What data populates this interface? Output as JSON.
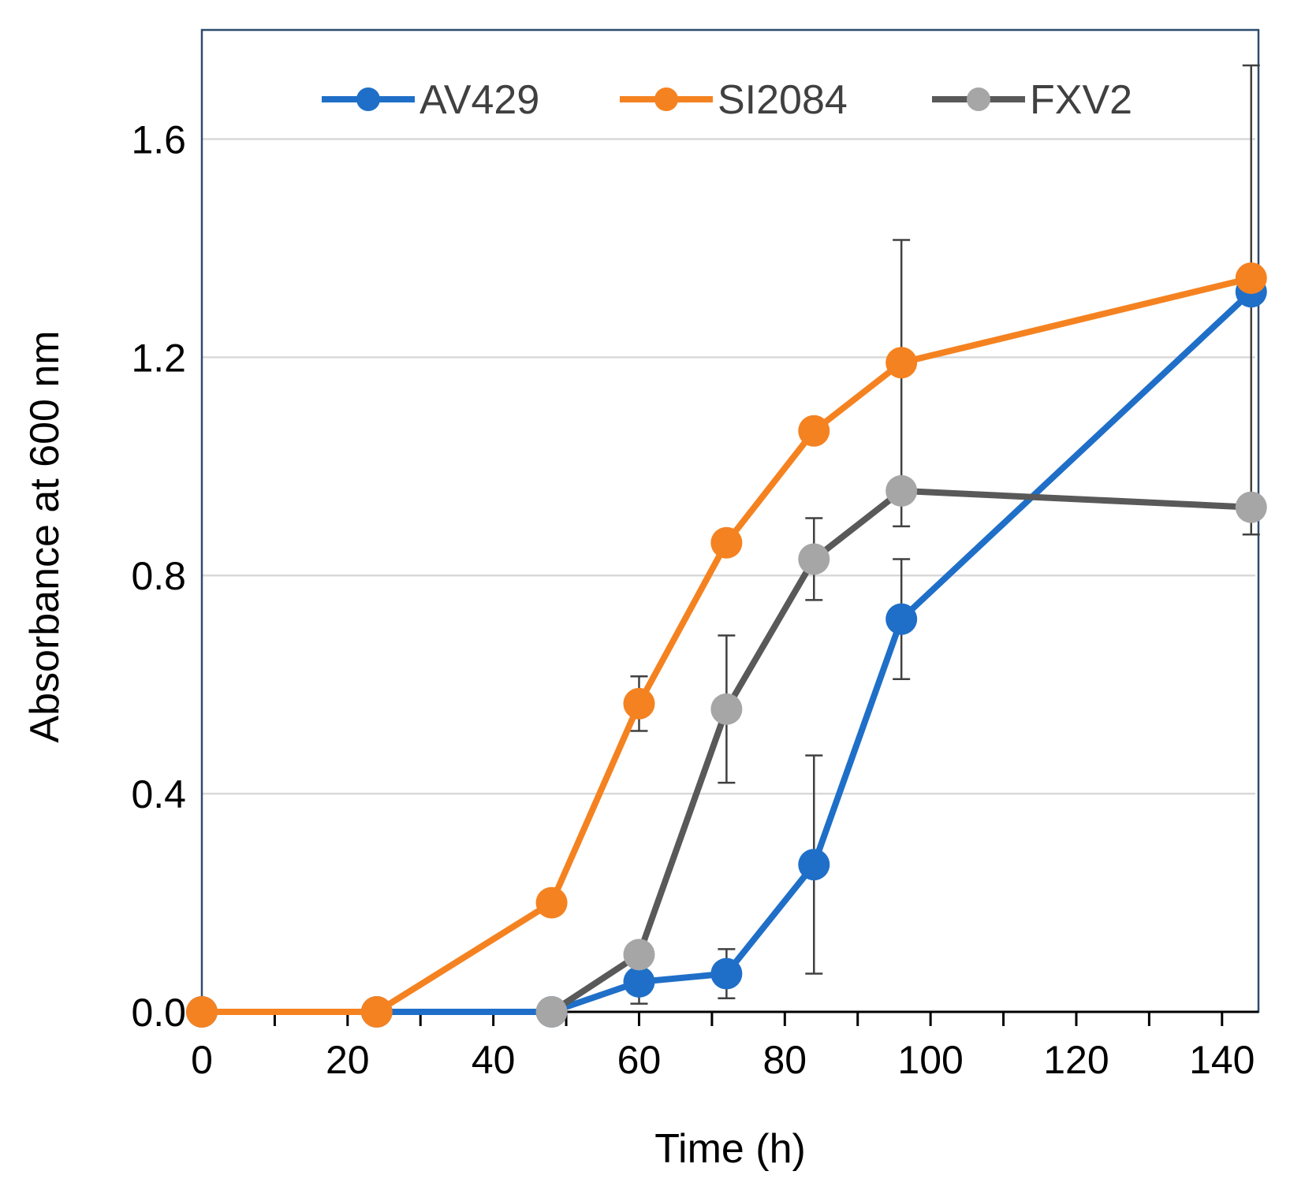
{
  "chart_data": {
    "type": "line",
    "title": "",
    "xlabel": "Time (h)",
    "ylabel": "Absorbance at 600 nm",
    "xlim": [
      0,
      145
    ],
    "ylim": [
      0,
      1.8
    ],
    "xticks": [
      0,
      20,
      40,
      60,
      80,
      100,
      120,
      140
    ],
    "xtick_labels": [
      "0",
      "20",
      "40",
      "60",
      "80",
      "100",
      "120",
      "140"
    ],
    "x_minor_ticks": [
      10,
      30,
      50,
      70,
      90,
      110,
      130
    ],
    "yticks": [
      0,
      0.4,
      0.8,
      1.2,
      1.6
    ],
    "ytick_labels": [
      "0.0",
      "0.4",
      "0.8",
      "1.2",
      "1.6"
    ],
    "grid": "horizontal",
    "legend_position": "top",
    "series": [
      {
        "name": "AV429",
        "color": "#1f6fc8",
        "x": [
          0,
          24,
          48,
          60,
          72,
          84,
          96,
          144
        ],
        "values": [
          0,
          0,
          0,
          0.055,
          0.07,
          0.27,
          0.72,
          1.32
        ],
        "error": [
          0,
          0,
          0,
          0.04,
          0.045,
          0.2,
          0.11,
          0
        ]
      },
      {
        "name": "SI2084",
        "color": "#f58220",
        "x": [
          0,
          24,
          48,
          60,
          72,
          84,
          96,
          144
        ],
        "values": [
          0,
          0,
          0.2,
          0.565,
          0.86,
          1.065,
          1.19,
          1.345
        ],
        "error": [
          0,
          0,
          0,
          0.05,
          0,
          0,
          0,
          0
        ]
      },
      {
        "name": "FXV2",
        "color": "#595959",
        "marker_color": "#a6a6a6",
        "x": [
          48,
          60,
          72,
          84,
          96,
          144
        ],
        "values": [
          0,
          0.105,
          0.555,
          0.83,
          0.955,
          0.925
        ],
        "error": [
          0,
          0,
          0.135,
          0.075,
          0.46,
          0.81
        ],
        "error_lower": [
          0,
          0,
          0.135,
          0.075,
          0.065,
          0.05
        ]
      }
    ]
  }
}
